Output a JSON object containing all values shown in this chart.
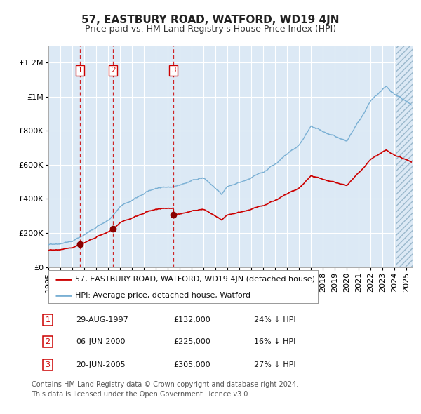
{
  "title": "57, EASTBURY ROAD, WATFORD, WD19 4JN",
  "subtitle": "Price paid vs. HM Land Registry's House Price Index (HPI)",
  "ylim": [
    0,
    1300000
  ],
  "xlim_start": 1995.0,
  "xlim_end": 2025.5,
  "background_color": "#dce9f5",
  "grid_color": "#ffffff",
  "red_line_color": "#cc0000",
  "blue_line_color": "#7ab0d4",
  "sale_marker_color": "#8b0000",
  "vline_color": "#cc0000",
  "sales": [
    {
      "num": 1,
      "date_year": 1997.66,
      "price": 132000,
      "label": "29-AUG-1997",
      "price_str": "£132,000",
      "below_hpi": "24% ↓ HPI"
    },
    {
      "num": 2,
      "date_year": 2000.43,
      "price": 225000,
      "label": "06-JUN-2000",
      "price_str": "£225,000",
      "below_hpi": "16% ↓ HPI"
    },
    {
      "num": 3,
      "date_year": 2005.47,
      "price": 305000,
      "label": "20-JUN-2005",
      "price_str": "£305,000",
      "below_hpi": "27% ↓ HPI"
    }
  ],
  "legend_label_red": "57, EASTBURY ROAD, WATFORD, WD19 4JN (detached house)",
  "legend_label_blue": "HPI: Average price, detached house, Watford",
  "footnote": "Contains HM Land Registry data © Crown copyright and database right 2024.\nThis data is licensed under the Open Government Licence v3.0.",
  "ytick_labels": [
    "£0",
    "£200K",
    "£400K",
    "£600K",
    "£800K",
    "£1M",
    "£1.2M"
  ],
  "ytick_values": [
    0,
    200000,
    400000,
    600000,
    800000,
    1000000,
    1200000
  ],
  "title_fontsize": 11,
  "subtitle_fontsize": 9,
  "tick_fontsize": 8,
  "legend_fontsize": 8,
  "footnote_fontsize": 7
}
